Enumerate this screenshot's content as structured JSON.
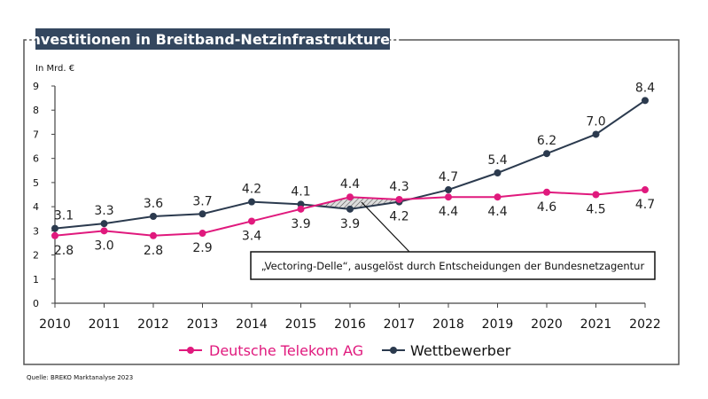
{
  "chart_data": {
    "type": "line",
    "title": "Investitionen in Breitband-Netzinfrastrukturen",
    "ylabel": "In Mrd. €",
    "xlabel": "",
    "ylim": [
      0,
      9
    ],
    "yticks": [
      0,
      1,
      2,
      3,
      4,
      5,
      6,
      7,
      8,
      9
    ],
    "grid": false,
    "legend_placement": "bottom",
    "categories": [
      "2010",
      "2011",
      "2012",
      "2013",
      "2014",
      "2015",
      "2016",
      "2017",
      "2018",
      "2019",
      "2020",
      "2021",
      "2022"
    ],
    "series": [
      {
        "name": "Deutsche Telekom AG",
        "color": "#e0197d",
        "values": [
          2.8,
          3.0,
          2.8,
          2.9,
          3.4,
          3.9,
          4.4,
          4.3,
          4.4,
          4.4,
          4.6,
          4.5,
          4.7
        ],
        "labels": [
          "2.8",
          "3.0",
          "2.8",
          "2.9",
          "3.4",
          "3.9",
          "4.4",
          "4.3",
          "4.4",
          "4.4",
          "4.6",
          "4.5",
          "4.7"
        ]
      },
      {
        "name": "Wettbewerber",
        "color": "#2b3a4e",
        "values": [
          3.1,
          3.3,
          3.6,
          3.7,
          4.2,
          4.1,
          3.9,
          4.2,
          4.7,
          5.4,
          6.2,
          7.0,
          8.4
        ],
        "labels": [
          "3.1",
          "3.3",
          "3.6",
          "3.7",
          "4.2",
          "4.1",
          "3.9",
          "4.2",
          "4.7",
          "5.4",
          "6.2",
          "7.0",
          "8.4"
        ]
      }
    ],
    "annotation": {
      "text": "„Vectoring-Delle“, ausgelöst durch Entscheidungen der Bundesnetzagentur",
      "range": [
        "2015",
        "2017"
      ]
    },
    "source": "Quelle: BREKO Marktanalyse 2023",
    "title_bg_color": "#34475f"
  }
}
